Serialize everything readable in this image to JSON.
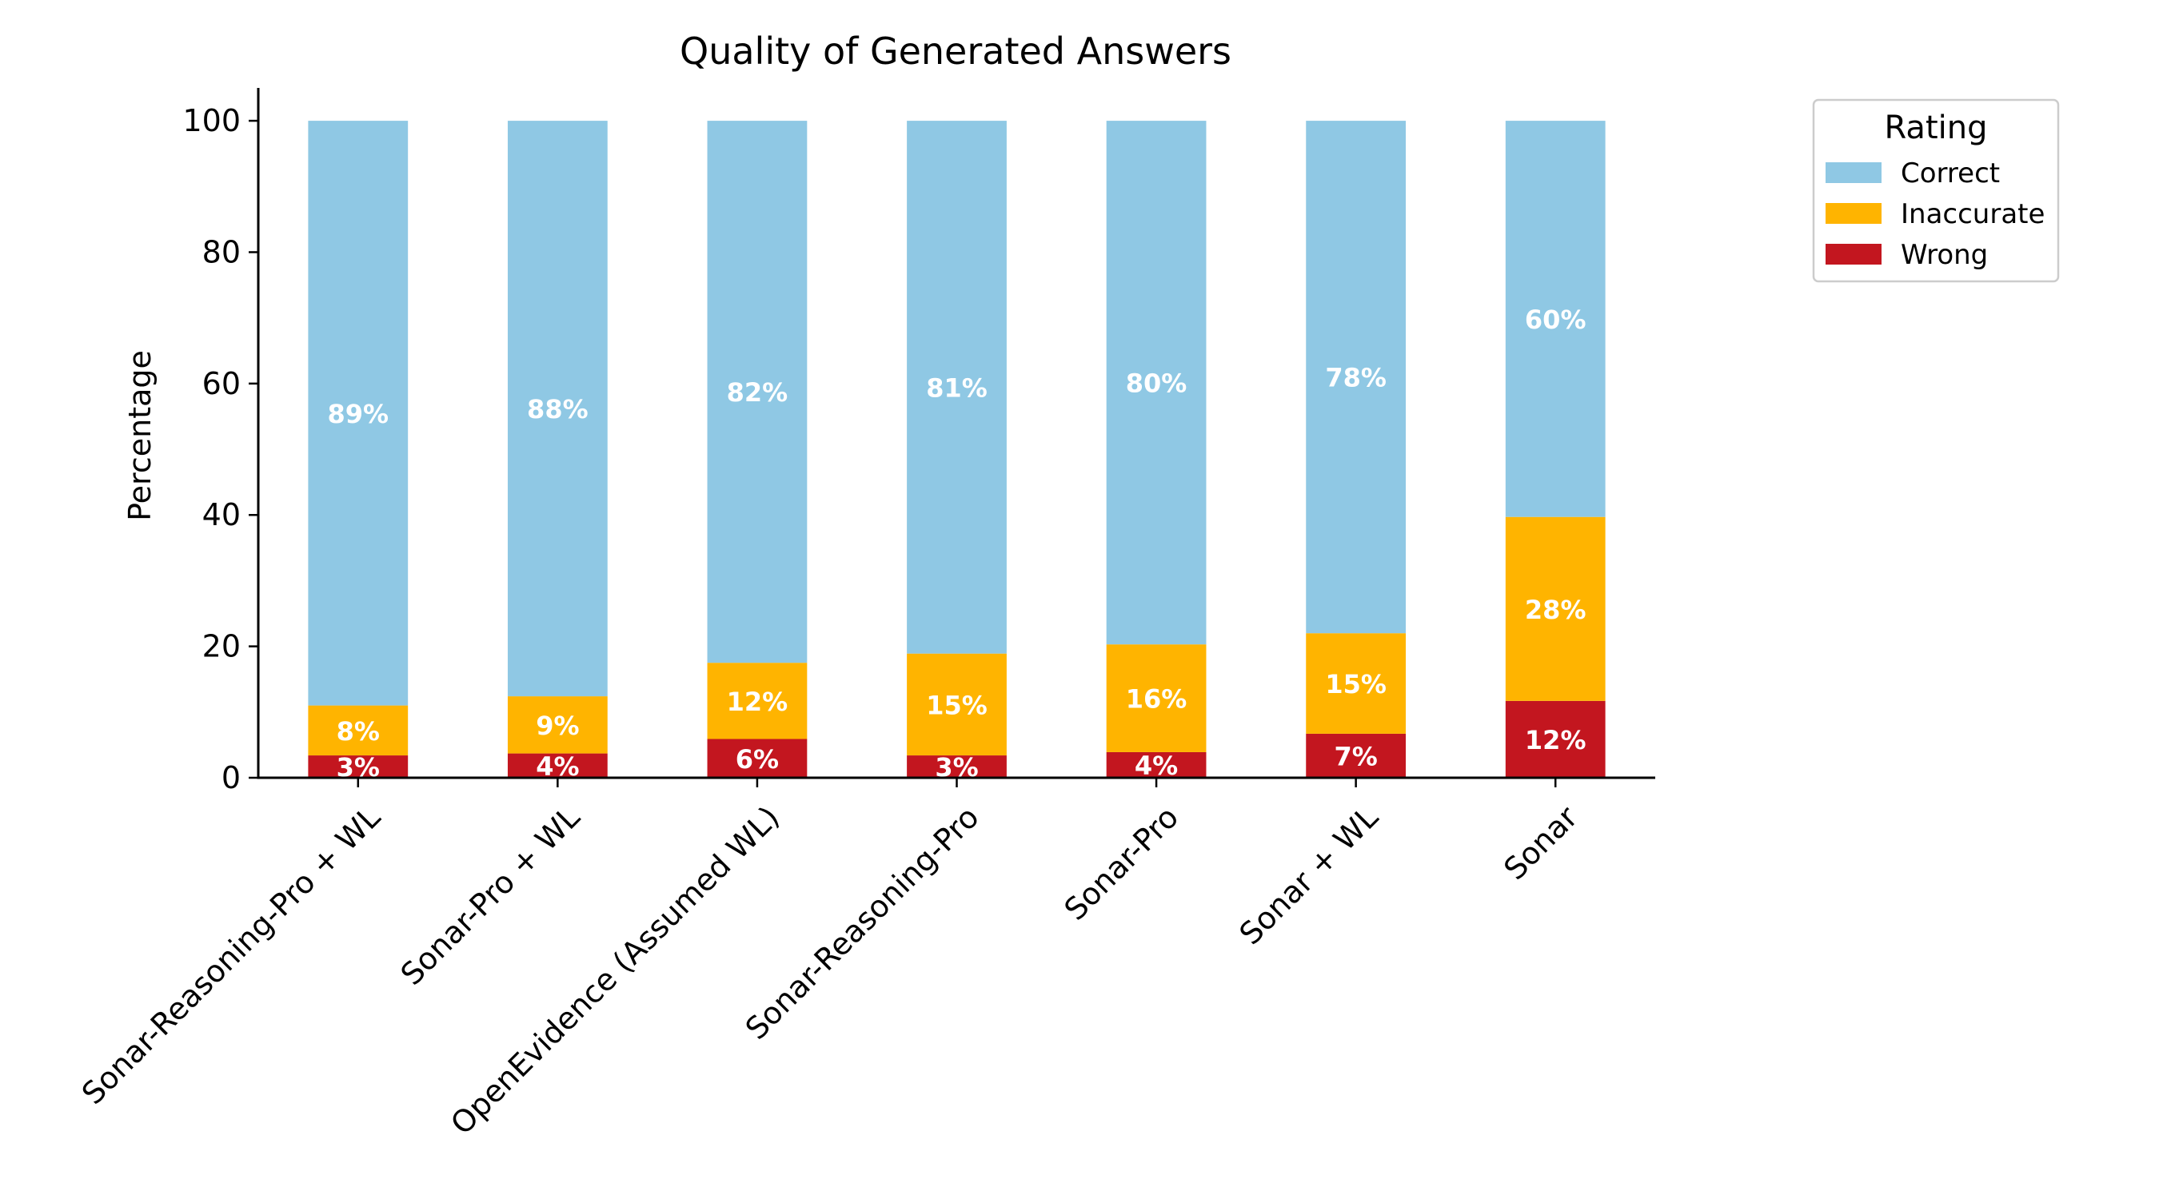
{
  "chart_data": {
    "type": "bar",
    "stacked": true,
    "title": "Quality of Generated Answers",
    "xlabel": "",
    "ylabel": "Percentage",
    "ylim": [
      0,
      105
    ],
    "yticks": [
      0,
      20,
      40,
      60,
      80,
      100
    ],
    "grid": false,
    "legend_placement": "outside-top-right",
    "legend_title": "Rating",
    "categories": [
      "Sonar-Reasoning-Pro + WL",
      "Sonar-Pro + WL",
      "OpenEvidence (Assumed WL)",
      "Sonar-Reasoning-Pro",
      "Sonar-Pro",
      "Sonar + WL",
      "Sonar"
    ],
    "series": [
      {
        "name": "Wrong",
        "color": "#c3161f",
        "values": [
          3.4,
          3.7,
          5.9,
          3.4,
          3.9,
          6.7,
          11.7
        ],
        "labels": [
          "3%",
          "4%",
          "6%",
          "3%",
          "4%",
          "7%",
          "12%"
        ]
      },
      {
        "name": "Inaccurate",
        "color": "#ffb400",
        "values": [
          7.6,
          8.7,
          11.6,
          15.5,
          16.4,
          15.3,
          28.0
        ],
        "labels": [
          "8%",
          "9%",
          "12%",
          "15%",
          "16%",
          "15%",
          "28%"
        ]
      },
      {
        "name": "Correct",
        "color": "#8fc8e4",
        "values": [
          89.0,
          87.6,
          82.5,
          81.1,
          79.7,
          78.0,
          60.3
        ],
        "labels": [
          "89%",
          "88%",
          "82%",
          "81%",
          "80%",
          "78%",
          "60%"
        ]
      }
    ],
    "legend_order": [
      "Correct",
      "Inaccurate",
      "Wrong"
    ]
  }
}
